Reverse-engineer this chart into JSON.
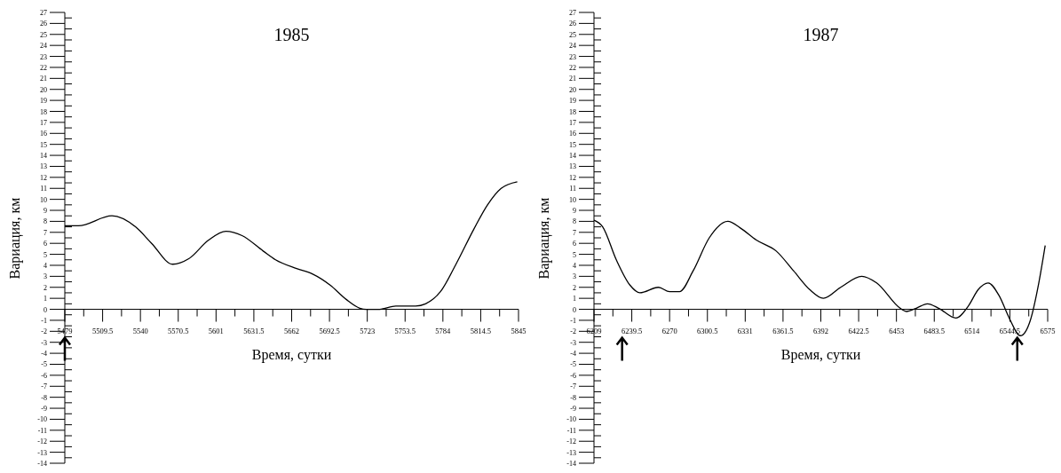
{
  "chart_data": [
    {
      "type": "line",
      "title": "1985",
      "xlabel": "Время, сутки",
      "ylabel": "Вариация, км",
      "xlim": [
        5479,
        5845
      ],
      "ylim": [
        -14,
        27
      ],
      "xticks": [
        5479,
        {
          "value": 5494.25,
          "label": null
        },
        5509.5,
        {
          "value": 5524.75,
          "label": null
        },
        5540,
        {
          "value": 5555.25,
          "label": null
        },
        5570.5,
        {
          "value": 5585.75,
          "label": null
        },
        5601,
        {
          "value": 5616.25,
          "label": null
        },
        5631.5,
        {
          "value": 5646.75,
          "label": null
        },
        5662,
        {
          "value": 5677.25,
          "label": null
        },
        5692.5,
        {
          "value": 5707.75,
          "label": null
        },
        5723,
        {
          "value": 5738.25,
          "label": null
        },
        5753.5,
        {
          "value": 5768.75,
          "label": null
        },
        5784,
        {
          "value": 5799.25,
          "label": null
        },
        5814.5,
        {
          "value": 5829.75,
          "label": null
        },
        5845
      ],
      "yticks": [
        -14,
        {
          "value": -13.5,
          "label": null
        },
        -13,
        {
          "value": -12.5,
          "label": null
        },
        -12,
        {
          "value": -11.5,
          "label": null
        },
        -11,
        {
          "value": -10.5,
          "label": null
        },
        -10,
        {
          "value": -9.5,
          "label": null
        },
        -9,
        {
          "value": -8.5,
          "label": null
        },
        -8,
        {
          "value": -7.5,
          "label": null
        },
        -7,
        {
          "value": -6.5,
          "label": null
        },
        -6,
        {
          "value": -5.5,
          "label": null
        },
        -5,
        {
          "value": -4.5,
          "label": null
        },
        -4,
        {
          "value": -3.5,
          "label": null
        },
        -3,
        {
          "value": -2.5,
          "label": null
        },
        -2,
        {
          "value": -1.5,
          "label": null
        },
        -1,
        {
          "value": -0.5,
          "label": null
        },
        0,
        {
          "value": 0.5,
          "label": null
        },
        1,
        {
          "value": 1.5,
          "label": null
        },
        2,
        {
          "value": 2.5,
          "label": null
        },
        3,
        {
          "value": 3.5,
          "label": null
        },
        4,
        {
          "value": 4.5,
          "label": null
        },
        5,
        {
          "value": 5.5,
          "label": null
        },
        6,
        {
          "value": 6.5,
          "label": null
        },
        7,
        {
          "value": 7.5,
          "label": null
        },
        8,
        {
          "value": 8.5,
          "label": null
        },
        9,
        {
          "value": 9.5,
          "label": null
        },
        10,
        {
          "value": 10.5,
          "label": null
        },
        11,
        {
          "value": 11.5,
          "label": null
        },
        12,
        {
          "value": 12.5,
          "label": null
        },
        13,
        {
          "value": 13.5,
          "label": null
        },
        14,
        {
          "value": 14.5,
          "label": null
        },
        15,
        {
          "value": 15.5,
          "label": null
        },
        16,
        {
          "value": 16.5,
          "label": null
        },
        17,
        {
          "value": 17.5,
          "label": null
        },
        18,
        {
          "value": 18.5,
          "label": null
        },
        19,
        {
          "value": 19.5,
          "label": null
        },
        20,
        {
          "value": 20.5,
          "label": null
        },
        21,
        {
          "value": 21.5,
          "label": null
        },
        22,
        {
          "value": 22.5,
          "label": null
        },
        23,
        {
          "value": 23.5,
          "label": null
        },
        24,
        {
          "value": 24.5,
          "label": null
        },
        25,
        {
          "value": 25.5,
          "label": null
        },
        26,
        {
          "value": 26.5,
          "label": null
        },
        27
      ],
      "series": [
        {
          "color": "#000000",
          "x": [
            5479,
            5490,
            5517,
            5536,
            5549,
            5566,
            5579,
            5595,
            5609,
            5622,
            5639,
            5649,
            5666,
            5679,
            5693,
            5706,
            5717,
            5722,
            5733,
            5746,
            5762,
            5770,
            5782,
            5795,
            5809,
            5820,
            5831,
            5844
          ],
          "values": [
            7.6,
            7.6,
            8.5,
            7.5,
            6,
            4.1,
            4.6,
            6.3,
            7.1,
            6.7,
            5.3,
            4.5,
            3.7,
            3.2,
            2.2,
            0.9,
            0.1,
            0,
            0,
            0.3,
            0.3,
            0.5,
            1.6,
            4.2,
            7.3,
            9.5,
            11,
            11.6
          ]
        }
      ],
      "marker": "none",
      "line_style": "solid"
    },
    {
      "type": "line",
      "title": "1987",
      "xlabel": "Время, сутки",
      "ylabel": "Вариация, км",
      "xlim": [
        6209,
        6575
      ],
      "ylim": [
        -14,
        27
      ],
      "xticks": [
        6209,
        {
          "value": 6224.25,
          "label": null
        },
        6239.5,
        {
          "value": 6254.75,
          "label": null
        },
        6270,
        {
          "value": 6285.25,
          "label": null
        },
        6300.5,
        {
          "value": 6315.75,
          "label": null
        },
        6331,
        {
          "value": 6346.25,
          "label": null
        },
        6361.5,
        {
          "value": 6376.75,
          "label": null
        },
        6392,
        {
          "value": 6407.25,
          "label": null
        },
        6422.5,
        {
          "value": 6437.75,
          "label": null
        },
        6453,
        {
          "value": 6468.25,
          "label": null
        },
        6483.5,
        {
          "value": 6498.75,
          "label": null
        },
        6514,
        {
          "value": 6529.25,
          "label": null
        },
        6544.5,
        {
          "value": 6559.75,
          "label": null
        },
        6575
      ],
      "yticks": [
        -14,
        {
          "value": -13.5,
          "label": null
        },
        -13,
        {
          "value": -12.5,
          "label": null
        },
        -12,
        {
          "value": -11.5,
          "label": null
        },
        -11,
        {
          "value": -10.5,
          "label": null
        },
        -10,
        {
          "value": -9.5,
          "label": null
        },
        -9,
        {
          "value": -8.5,
          "label": null
        },
        -8,
        {
          "value": -7.5,
          "label": null
        },
        -7,
        {
          "value": -6.5,
          "label": null
        },
        -6,
        {
          "value": -5.5,
          "label": null
        },
        -5,
        {
          "value": -4.5,
          "label": null
        },
        -4,
        {
          "value": -3.5,
          "label": null
        },
        -3,
        {
          "value": -2.5,
          "label": null
        },
        -2,
        {
          "value": -1.5,
          "label": null
        },
        -1,
        {
          "value": -0.5,
          "label": null
        },
        0,
        {
          "value": 0.5,
          "label": null
        },
        1,
        {
          "value": 1.5,
          "label": null
        },
        2,
        {
          "value": 2.5,
          "label": null
        },
        3,
        {
          "value": 3.5,
          "label": null
        },
        4,
        {
          "value": 4.5,
          "label": null
        },
        5,
        {
          "value": 5.5,
          "label": null
        },
        6,
        {
          "value": 6.5,
          "label": null
        },
        7,
        {
          "value": 7.5,
          "label": null
        },
        8,
        {
          "value": 8.5,
          "label": null
        },
        9,
        {
          "value": 9.5,
          "label": null
        },
        10,
        {
          "value": 10.5,
          "label": null
        },
        11,
        {
          "value": 11.5,
          "label": null
        },
        12,
        {
          "value": 12.5,
          "label": null
        },
        13,
        {
          "value": 13.5,
          "label": null
        },
        14,
        {
          "value": 14.5,
          "label": null
        },
        15,
        {
          "value": 15.5,
          "label": null
        },
        16,
        {
          "value": 16.5,
          "label": null
        },
        17,
        {
          "value": 17.5,
          "label": null
        },
        18,
        {
          "value": 18.5,
          "label": null
        },
        19,
        {
          "value": 19.5,
          "label": null
        },
        20,
        {
          "value": 20.5,
          "label": null
        },
        21,
        {
          "value": 21.5,
          "label": null
        },
        22,
        {
          "value": 22.5,
          "label": null
        },
        23,
        {
          "value": 23.5,
          "label": null
        },
        24,
        {
          "value": 24.5,
          "label": null
        },
        25,
        {
          "value": 25.5,
          "label": null
        },
        26,
        {
          "value": 26.5,
          "label": null
        },
        27
      ],
      "series": [
        {
          "color": "#000000",
          "x": [
            6209,
            6216,
            6227,
            6238,
            6246,
            6261,
            6270,
            6278,
            6289,
            6302,
            6317,
            6327,
            6340,
            6356,
            6370,
            6383,
            6394,
            6408,
            6425,
            6437,
            6456,
            6461,
            6469,
            6478,
            6487,
            6501,
            6511,
            6519,
            6527,
            6536,
            6544,
            6553,
            6561,
            6568,
            6573
          ],
          "values": [
            8.1,
            7.5,
            4.5,
            2.2,
            1.5,
            2,
            1.6,
            1.6,
            3.5,
            6.5,
            8,
            7.4,
            6.3,
            5.3,
            3.5,
            1.8,
            1,
            2,
            3,
            2.4,
            0.1,
            -0.2,
            0.1,
            0.5,
            0.1,
            -0.8,
            0.3,
            1.8,
            2.4,
            1.2,
            -0.8,
            -2.4,
            -1,
            2.5,
            5.8
          ]
        }
      ],
      "marker": "none",
      "line_style": "solid"
    }
  ]
}
